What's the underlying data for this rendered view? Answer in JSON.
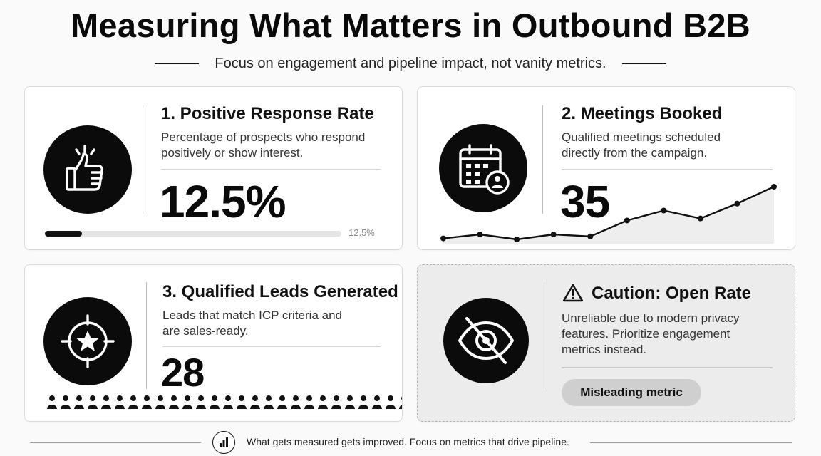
{
  "header": {
    "title": "Measuring What Matters in Outbound B2B",
    "subtitle": "Focus on engagement and pipeline impact, not vanity metrics."
  },
  "cards": {
    "response_rate": {
      "title": "1. Positive Response Rate",
      "description": "Percentage of prospects who respond positively or show interest.",
      "value": "12.5%",
      "progress_fraction": 0.125,
      "progress_label": "12.5%",
      "icon": "thumbs-up-icon"
    },
    "meetings": {
      "title": "2. Meetings Booked",
      "description": "Qualified meetings scheduled directly from the campaign.",
      "value": "35",
      "icon": "calendar-user-icon",
      "sparkline": [
        10,
        14,
        9,
        14,
        12,
        28,
        38,
        30,
        45,
        62
      ]
    },
    "leads": {
      "title": "3. Qualified Leads Generated",
      "description": "Leads that match ICP criteria and are sales-ready.",
      "value": "28",
      "icon": "target-star-icon",
      "people_total": 40,
      "people_filled": 28
    },
    "caution": {
      "title": "Caution: Open Rate",
      "description": "Unreliable due to modern privacy features. Prioritize engagement metrics instead.",
      "badge": "Misleading metric",
      "icon": "eye-slash-icon"
    }
  },
  "footer": {
    "text": "What gets measured gets improved. Focus on metrics that drive pipeline.",
    "icon": "bar-chart-icon"
  },
  "colors": {
    "ink": "#111111",
    "muted": "#d4d4d4",
    "caution_bg": "#ececec"
  }
}
